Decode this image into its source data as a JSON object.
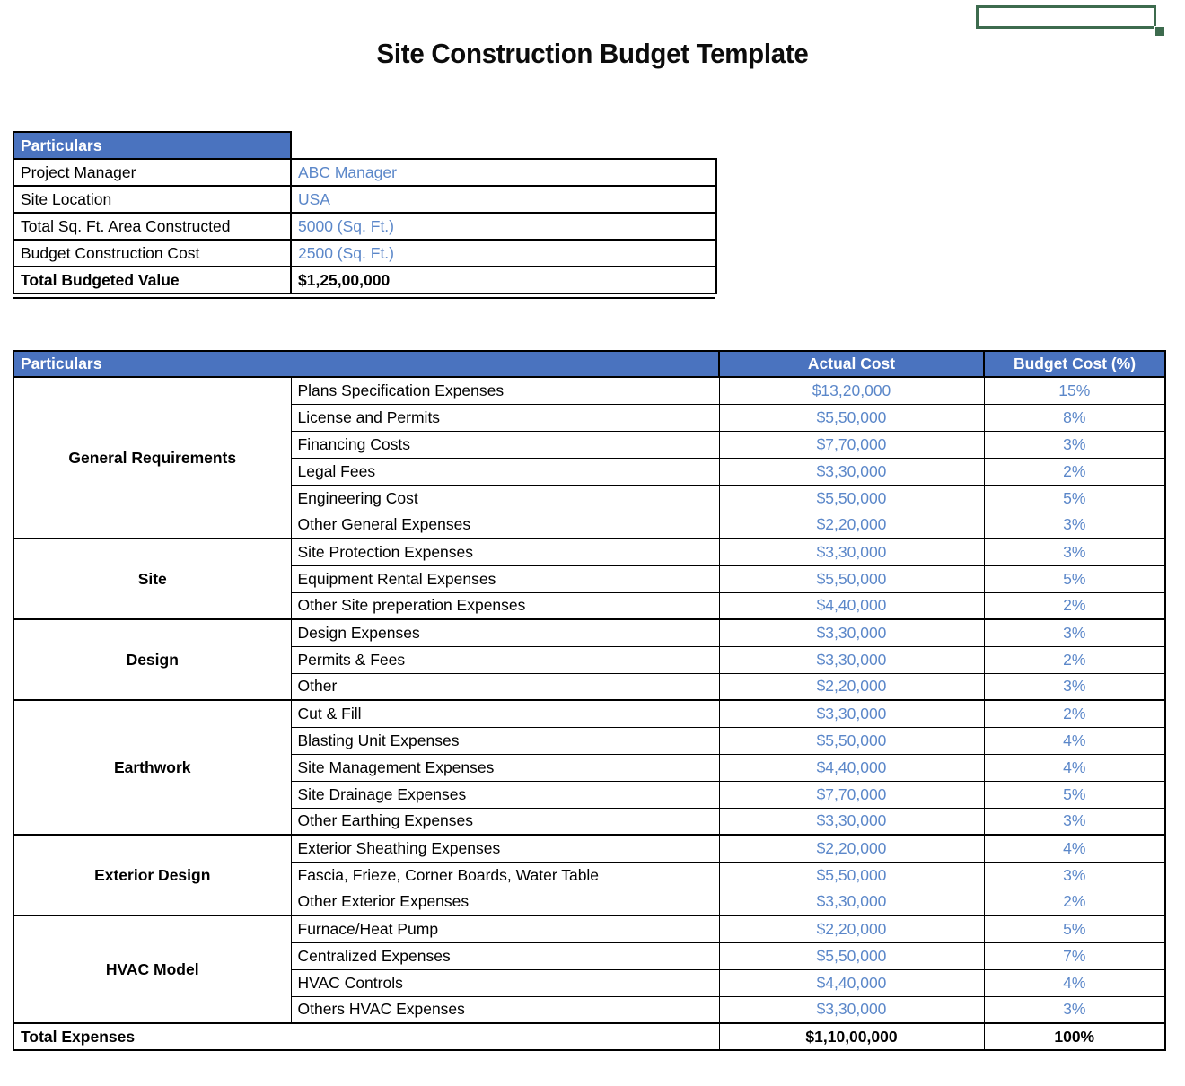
{
  "page": {
    "title": "Site Construction Budget Template"
  },
  "colors": {
    "header_blue": "#4a73bf",
    "value_blue": "#5b87c9",
    "selection_green": "#3d6b4e"
  },
  "info_table": {
    "header": "Particulars",
    "rows": [
      {
        "label": "Project Manager",
        "value": "ABC Manager",
        "value_style": "blue"
      },
      {
        "label": "Site Location",
        "value": "USA",
        "value_style": "blue"
      },
      {
        "label": "Total Sq. Ft. Area Constructed",
        "value": "5000 (Sq. Ft.)",
        "value_style": "blue"
      },
      {
        "label": "Budget Construction Cost",
        "value": "2500 (Sq. Ft.)",
        "value_style": "blue"
      },
      {
        "label": "Total Budgeted Value",
        "value": "$1,25,00,000",
        "value_style": "bold",
        "label_style": "bold"
      }
    ]
  },
  "budget_table": {
    "headers": {
      "particulars": "Particulars",
      "actual_cost": "Actual Cost",
      "budget_cost": "Budget Cost (%)"
    },
    "sections": [
      {
        "category": "General Requirements",
        "items": [
          {
            "name": "Plans Specification Expenses",
            "actual_cost": "$13,20,000",
            "budget_pct": "15%"
          },
          {
            "name": "License and Permits",
            "actual_cost": "$5,50,000",
            "budget_pct": "8%"
          },
          {
            "name": "Financing Costs",
            "actual_cost": "$7,70,000",
            "budget_pct": "3%"
          },
          {
            "name": "Legal Fees",
            "actual_cost": "$3,30,000",
            "budget_pct": "2%"
          },
          {
            "name": "Engineering Cost",
            "actual_cost": "$5,50,000",
            "budget_pct": "5%"
          },
          {
            "name": "Other General Expenses",
            "actual_cost": "$2,20,000",
            "budget_pct": "3%"
          }
        ]
      },
      {
        "category": "Site",
        "items": [
          {
            "name": "Site Protection Expenses",
            "actual_cost": "$3,30,000",
            "budget_pct": "3%"
          },
          {
            "name": "Equipment Rental Expenses",
            "actual_cost": "$5,50,000",
            "budget_pct": "5%"
          },
          {
            "name": "Other Site preperation Expenses",
            "actual_cost": "$4,40,000",
            "budget_pct": "2%"
          }
        ]
      },
      {
        "category": "Design",
        "items": [
          {
            "name": "Design Expenses",
            "actual_cost": "$3,30,000",
            "budget_pct": "3%"
          },
          {
            "name": "Permits & Fees",
            "actual_cost": "$3,30,000",
            "budget_pct": "2%"
          },
          {
            "name": "Other",
            "actual_cost": "$2,20,000",
            "budget_pct": "3%"
          }
        ]
      },
      {
        "category": "Earthwork",
        "items": [
          {
            "name": "Cut & Fill",
            "actual_cost": "$3,30,000",
            "budget_pct": "2%"
          },
          {
            "name": "Blasting Unit Expenses",
            "actual_cost": "$5,50,000",
            "budget_pct": "4%"
          },
          {
            "name": "Site Management Expenses",
            "actual_cost": "$4,40,000",
            "budget_pct": "4%"
          },
          {
            "name": "Site Drainage Expenses",
            "actual_cost": "$7,70,000",
            "budget_pct": "5%"
          },
          {
            "name": "Other Earthing Expenses",
            "actual_cost": "$3,30,000",
            "budget_pct": "3%"
          }
        ]
      },
      {
        "category": "Exterior Design",
        "items": [
          {
            "name": "Exterior Sheathing Expenses",
            "actual_cost": "$2,20,000",
            "budget_pct": "4%"
          },
          {
            "name": "Fascia, Frieze, Corner Boards, Water Table",
            "actual_cost": "$5,50,000",
            "budget_pct": "3%"
          },
          {
            "name": "Other Exterior Expenses",
            "actual_cost": "$3,30,000",
            "budget_pct": "2%"
          }
        ]
      },
      {
        "category": "HVAC Model",
        "items": [
          {
            "name": "Furnace/Heat Pump",
            "actual_cost": "$2,20,000",
            "budget_pct": "5%"
          },
          {
            "name": "Centralized Expenses",
            "actual_cost": "$5,50,000",
            "budget_pct": "7%"
          },
          {
            "name": "HVAC Controls",
            "actual_cost": "$4,40,000",
            "budget_pct": "4%"
          },
          {
            "name": "Others HVAC Expenses",
            "actual_cost": "$3,30,000",
            "budget_pct": "3%"
          }
        ]
      }
    ],
    "total": {
      "label": "Total Expenses",
      "actual_cost": "$1,10,00,000",
      "budget_pct": "100%"
    }
  }
}
